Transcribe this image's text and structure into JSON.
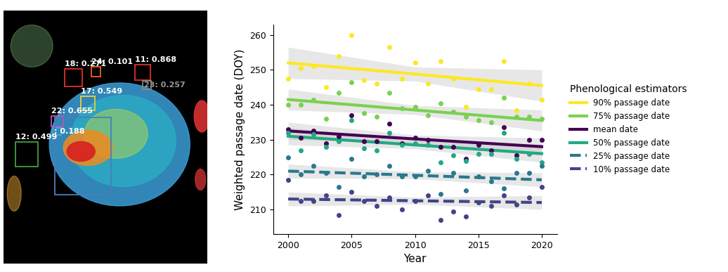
{
  "chart_data": [
    {
      "type": "detection_image",
      "tick_labels": false,
      "boxes": [
        {
          "label": "18: 0.271",
          "color": "#e0302a"
        },
        {
          "label": "24: 0.101",
          "color": "#f06020"
        },
        {
          "label": "11: 0.868",
          "color": "#e0302a"
        },
        {
          "label": "23: 0.257",
          "color": "#888888"
        },
        {
          "label": "17: 0.549",
          "color": "#e8d040"
        },
        {
          "label": "22: 0.655",
          "color": "#c050c0"
        },
        {
          "label": ": 0.188",
          "color": "#40b0d0"
        },
        {
          "label": "12: 0.499",
          "color": "#40a040"
        },
        {
          "label": null,
          "color": "#4a7fb8"
        }
      ]
    },
    {
      "type": "scatter",
      "x_label": "Year",
      "y_label": "Weighted passage date (DOY)",
      "xlim": [
        1998.8,
        2021.2
      ],
      "xticks": [
        2000,
        2005,
        2010,
        2015,
        2020
      ],
      "ylim": [
        203,
        263
      ],
      "yticks": [
        210,
        220,
        230,
        240,
        250,
        260
      ],
      "legend": "center left",
      "legend_title": "Phenological estimators",
      "x": [
        2000,
        2001,
        2002,
        2003,
        2004,
        2005,
        2006,
        2007,
        2008,
        2009,
        2010,
        2011,
        2012,
        2013,
        2014,
        2015,
        2016,
        2017,
        2018,
        2019,
        2020
      ],
      "trend_x": [
        2000,
        2010,
        2020
      ],
      "series": [
        {
          "name": "90% passage date",
          "color": "#fde725",
          "line_style": "solid",
          "values": [
            247.5,
            250.5,
            251,
            245,
            254,
            260,
            247,
            246,
            256.5,
            247.5,
            252,
            246,
            252.5,
            247.5,
            239.5,
            244.5,
            244.5,
            252.5,
            238.5,
            246,
            241.5
          ],
          "trend": [
            252,
            248.8,
            245.5
          ],
          "trend_lower": [
            247.5,
            246.8,
            241
          ],
          "trend_upper": [
            256.5,
            250.8,
            250
          ]
        },
        {
          "name": "75% passage date",
          "color": "#7ad151",
          "line_style": "solid",
          "values": [
            240,
            240,
            241.5,
            236,
            243.5,
            246.5,
            237.5,
            236.5,
            243.5,
            239,
            239.5,
            237,
            240.5,
            238,
            236.5,
            235.5,
            235,
            242,
            236.5,
            236.5,
            236
          ],
          "trend": [
            241.5,
            238.5,
            235.5
          ],
          "trend_lower": [
            238.5,
            237.2,
            232.5
          ],
          "trend_upper": [
            244.5,
            239.8,
            238.5
          ]
        },
        {
          "name": "mean date",
          "color": "#440154",
          "line_style": "solid",
          "values": [
            233,
            230.5,
            232.5,
            229,
            231,
            237,
            229.5,
            229.5,
            234.5,
            229,
            230.5,
            230,
            228,
            228,
            224.5,
            228.5,
            227,
            233.5,
            225.5,
            230,
            230
          ],
          "trend": [
            232.5,
            230.2,
            228
          ],
          "trend_lower": [
            230,
            229.1,
            225.5
          ],
          "trend_upper": [
            235,
            231.3,
            230.5
          ]
        },
        {
          "name": "50% passage date",
          "color": "#22a884",
          "line_style": "solid",
          "values": [
            232,
            227,
            231.5,
            228,
            229.5,
            235.5,
            227.5,
            227,
            232,
            228.5,
            229,
            228.5,
            223.5,
            225.5,
            224,
            226,
            226,
            232,
            224.5,
            226,
            223.5
          ],
          "trend": [
            231,
            228.5,
            226
          ],
          "trend_lower": [
            228.5,
            227.4,
            223.5
          ],
          "trend_upper": [
            233.5,
            229.6,
            228.5
          ]
        },
        {
          "name": "25% passage date",
          "color": "#2a788e",
          "line_style": "dashed",
          "values": [
            225,
            220,
            222.5,
            220.5,
            216.5,
            224.5,
            219.5,
            220,
            222.5,
            219.5,
            219.5,
            221,
            214.5,
            220.5,
            215.5,
            219.5,
            218,
            216,
            220.5,
            220.5,
            222.5
          ],
          "trend": [
            221,
            219.8,
            218.5
          ],
          "trend_lower": [
            219,
            218.8,
            216.5
          ],
          "trend_upper": [
            223,
            220.8,
            220.5
          ]
        },
        {
          "name": "10% passage date",
          "color": "#414487",
          "line_style": "dashed",
          "values": [
            218.5,
            212.5,
            212.5,
            214,
            208.5,
            215,
            212.5,
            211,
            213.5,
            210,
            212.5,
            214,
            207,
            209.5,
            208,
            212,
            211,
            214,
            211.5,
            213.5,
            216.5
          ],
          "trend": [
            213,
            212.5,
            212
          ],
          "trend_lower": [
            211,
            211.5,
            210
          ],
          "trend_upper": [
            215,
            213.5,
            214
          ]
        }
      ]
    }
  ]
}
